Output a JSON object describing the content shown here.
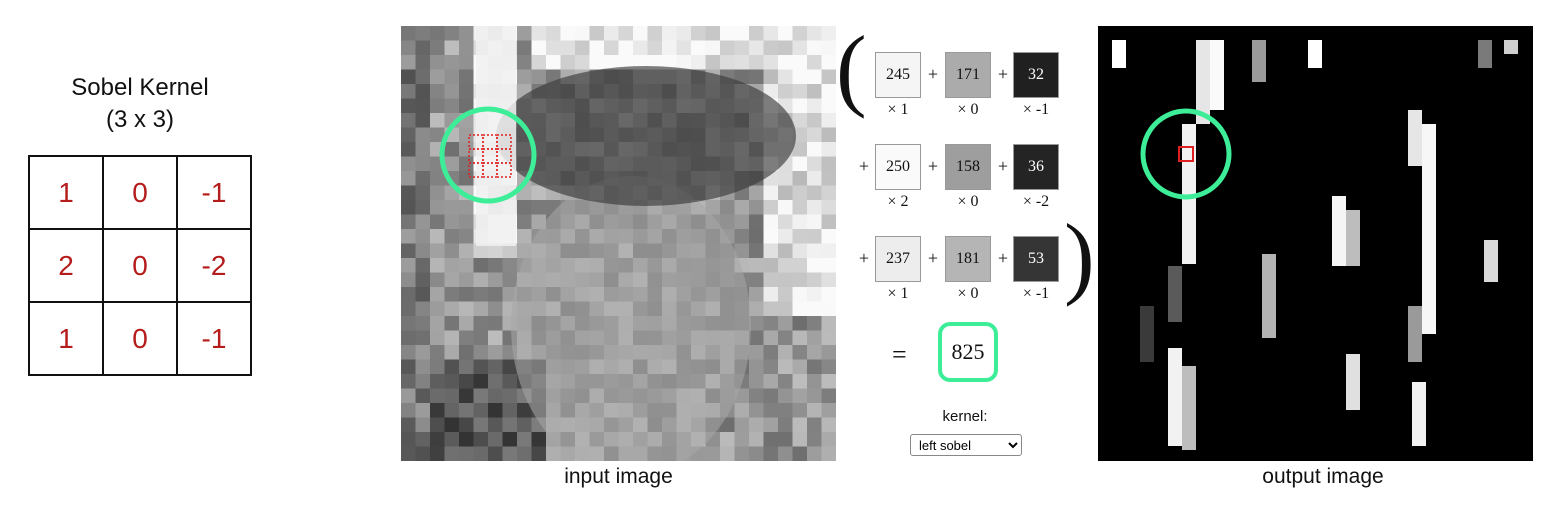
{
  "kernel_panel": {
    "title_line1": "Sobel Kernel",
    "title_line2": "(3 x 3)",
    "rows": [
      [
        "1",
        "0",
        "-1"
      ],
      [
        "2",
        "0",
        "-2"
      ],
      [
        "1",
        "0",
        "-1"
      ]
    ]
  },
  "equation": {
    "rows": [
      {
        "values": [
          "245",
          "171",
          "32"
        ],
        "weights": [
          "× 1",
          "× 0",
          "× -1"
        ],
        "shades": [
          "#f5f5f5",
          "#ababab",
          "#202020"
        ]
      },
      {
        "values": [
          "250",
          "158",
          "36"
        ],
        "weights": [
          "× 2",
          "× 0",
          "× -2"
        ],
        "shades": [
          "#fafafa",
          "#9e9e9e",
          "#242424"
        ]
      },
      {
        "values": [
          "237",
          "181",
          "53"
        ],
        "weights": [
          "× 1",
          "× 0",
          "× -1"
        ],
        "shades": [
          "#ededed",
          "#b5b5b5",
          "#353535"
        ]
      }
    ],
    "plus": "+",
    "equals": "=",
    "result": "825"
  },
  "controls": {
    "kernel_label": "kernel:",
    "kernel_selected": "left sobel"
  },
  "captions": {
    "input": "input image",
    "output": "output image"
  },
  "colors": {
    "highlight": "#3ded97",
    "kernel_text": "#b51c1c",
    "selection": "#e02020"
  }
}
